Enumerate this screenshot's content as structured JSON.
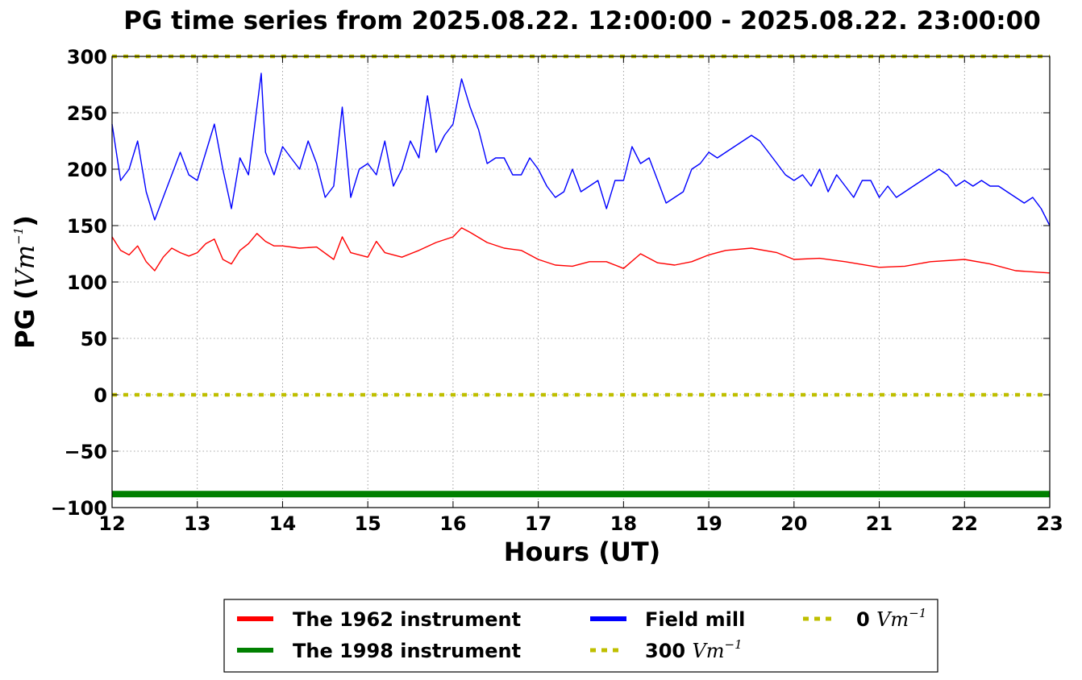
{
  "chart_data": {
    "type": "line",
    "title": "PG time series from 2025.08.22. 12:00:00 - 2025.08.22. 23:00:00",
    "xlabel": "Hours (UT)",
    "ylabel": "PG (",
    "ylabel_unit": "Vm",
    "ylabel_exp": "−1",
    "ylabel_close": ")",
    "xlim": [
      12,
      23
    ],
    "ylim": [
      -100,
      300
    ],
    "xticks": [
      12,
      13,
      14,
      15,
      16,
      17,
      18,
      19,
      20,
      21,
      22,
      23
    ],
    "yticks": [
      300,
      250,
      200,
      150,
      100,
      50,
      0,
      -50,
      -100
    ],
    "ytick_labels": [
      "300",
      "250",
      "200",
      "150",
      "100",
      "50",
      "0",
      "−50",
      "−100"
    ],
    "grid": true,
    "legend_placement": "bottom-center",
    "series": [
      {
        "name": "The 1962 instrument",
        "color": "#ff0000",
        "style": "solid",
        "x": [
          12.0,
          12.1,
          12.2,
          12.3,
          12.4,
          12.5,
          12.6,
          12.7,
          12.8,
          12.9,
          13.0,
          13.1,
          13.2,
          13.3,
          13.4,
          13.5,
          13.6,
          13.7,
          13.8,
          13.9,
          14.0,
          14.2,
          14.4,
          14.6,
          14.7,
          14.8,
          15.0,
          15.1,
          15.2,
          15.4,
          15.6,
          15.8,
          16.0,
          16.1,
          16.2,
          16.4,
          16.6,
          16.8,
          17.0,
          17.2,
          17.4,
          17.6,
          17.8,
          18.0,
          18.2,
          18.4,
          18.6,
          18.8,
          19.0,
          19.2,
          19.5,
          19.8,
          20.0,
          20.3,
          20.6,
          21.0,
          21.3,
          21.6,
          22.0,
          22.3,
          22.6,
          23.0
        ],
        "values": [
          140,
          128,
          124,
          132,
          118,
          110,
          122,
          130,
          126,
          123,
          126,
          134,
          138,
          120,
          116,
          128,
          134,
          143,
          136,
          132,
          132,
          130,
          131,
          120,
          140,
          126,
          122,
          136,
          126,
          122,
          128,
          135,
          140,
          148,
          144,
          135,
          130,
          128,
          120,
          115,
          114,
          118,
          118,
          112,
          125,
          117,
          115,
          118,
          124,
          128,
          130,
          126,
          120,
          121,
          118,
          113,
          114,
          118,
          120,
          116,
          110,
          108
        ]
      },
      {
        "name": "The 1998 instrument",
        "color": "#008000",
        "style": "solid",
        "x": [
          12,
          23
        ],
        "values": [
          -88,
          -88
        ]
      },
      {
        "name": "Field mill",
        "color": "#0000ff",
        "style": "solid",
        "x": [
          12.0,
          12.05,
          12.1,
          12.2,
          12.3,
          12.4,
          12.5,
          12.6,
          12.7,
          12.8,
          12.9,
          13.0,
          13.1,
          13.2,
          13.3,
          13.4,
          13.5,
          13.6,
          13.7,
          13.75,
          13.8,
          13.9,
          14.0,
          14.1,
          14.2,
          14.3,
          14.4,
          14.5,
          14.6,
          14.7,
          14.8,
          14.9,
          15.0,
          15.1,
          15.2,
          15.3,
          15.4,
          15.5,
          15.6,
          15.7,
          15.8,
          15.9,
          16.0,
          16.1,
          16.2,
          16.3,
          16.4,
          16.5,
          16.6,
          16.7,
          16.8,
          16.9,
          17.0,
          17.1,
          17.2,
          17.3,
          17.4,
          17.5,
          17.6,
          17.7,
          17.8,
          17.9,
          18.0,
          18.1,
          18.2,
          18.3,
          18.4,
          18.5,
          18.6,
          18.7,
          18.8,
          18.9,
          19.0,
          19.1,
          19.2,
          19.3,
          19.4,
          19.5,
          19.6,
          19.7,
          19.8,
          19.9,
          20.0,
          20.1,
          20.2,
          20.3,
          20.4,
          20.5,
          20.6,
          20.7,
          20.8,
          20.9,
          21.0,
          21.1,
          21.2,
          21.3,
          21.4,
          21.5,
          21.6,
          21.7,
          21.8,
          21.9,
          22.0,
          22.1,
          22.2,
          22.3,
          22.4,
          22.5,
          22.6,
          22.7,
          22.8,
          22.9,
          23.0
        ],
        "values": [
          240,
          215,
          190,
          200,
          225,
          180,
          155,
          175,
          195,
          215,
          195,
          190,
          215,
          240,
          200,
          165,
          210,
          195,
          255,
          285,
          215,
          195,
          220,
          210,
          200,
          225,
          205,
          175,
          185,
          255,
          175,
          200,
          205,
          195,
          225,
          185,
          200,
          225,
          210,
          265,
          215,
          230,
          240,
          280,
          255,
          235,
          205,
          210,
          210,
          195,
          195,
          210,
          200,
          185,
          175,
          180,
          200,
          180,
          185,
          190,
          165,
          190,
          190,
          220,
          205,
          210,
          190,
          170,
          175,
          180,
          200,
          205,
          215,
          210,
          215,
          220,
          225,
          230,
          225,
          215,
          205,
          195,
          190,
          195,
          185,
          200,
          180,
          195,
          185,
          175,
          190,
          190,
          175,
          185,
          175,
          180,
          185,
          190,
          195,
          200,
          195,
          185,
          190,
          185,
          190,
          185,
          185,
          180,
          175,
          170,
          175,
          165,
          150
        ]
      },
      {
        "name": "300 Vm−1",
        "color": "#bfbf00",
        "style": "dotted",
        "x": [
          12,
          23
        ],
        "values": [
          300,
          300
        ]
      },
      {
        "name": "0 Vm−1",
        "color": "#bfbf00",
        "style": "dotted",
        "x": [
          12,
          23
        ],
        "values": [
          0,
          0
        ]
      }
    ],
    "legend": {
      "items": [
        {
          "label": "The 1962 instrument",
          "unit": "",
          "exp": "",
          "color": "#ff0000",
          "style": "solid"
        },
        {
          "label": "The 1998 instrument",
          "unit": "",
          "exp": "",
          "color": "#008000",
          "style": "solid"
        },
        {
          "label": "Field mill",
          "unit": "",
          "exp": "",
          "color": "#0000ff",
          "style": "solid"
        },
        {
          "label": "300 ",
          "unit": "Vm",
          "exp": "−1",
          "color": "#bfbf00",
          "style": "dotted"
        },
        {
          "label": "0 ",
          "unit": "Vm",
          "exp": "−1",
          "color": "#bfbf00",
          "style": "dotted"
        }
      ]
    }
  }
}
